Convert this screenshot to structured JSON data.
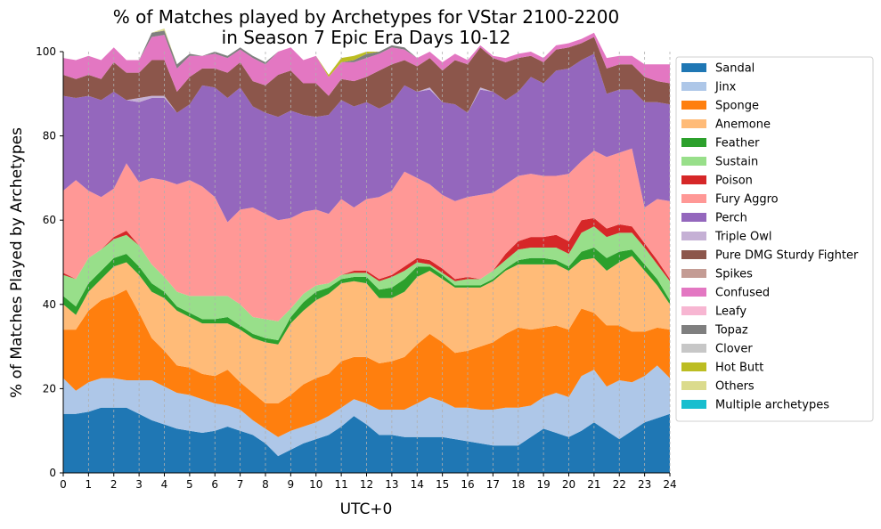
{
  "chart_data": {
    "type": "area",
    "stacked": true,
    "title_line1": "% of Matches played by Archetypes for VStar 2100-2200",
    "title_line2": "in Season 7 Epic Era Days 10-12",
    "xlabel": "UTC+0",
    "ylabel": "% of Matches Played by Archetypes",
    "xlim": [
      0,
      24
    ],
    "ylim": [
      0,
      100
    ],
    "grid": "vertical dashed at every hour",
    "legend_position": "right, outside plot",
    "x": [
      0,
      0.5,
      1,
      1.5,
      2,
      2.5,
      3,
      3.5,
      4,
      4.5,
      5,
      5.5,
      6,
      6.5,
      7,
      7.5,
      8,
      8.5,
      9,
      9.5,
      10,
      10.5,
      11,
      11.5,
      12,
      12.5,
      13,
      13.5,
      14,
      14.5,
      15,
      15.5,
      16,
      16.5,
      17,
      17.5,
      18,
      18.5,
      19,
      19.5,
      20,
      20.5,
      21,
      21.5,
      22,
      22.5,
      23,
      23.5,
      24
    ],
    "x_ticks": [
      "0",
      "1",
      "2",
      "3",
      "4",
      "5",
      "6",
      "7",
      "8",
      "9",
      "10",
      "11",
      "12",
      "13",
      "14",
      "15",
      "16",
      "17",
      "18",
      "19",
      "20",
      "21",
      "22",
      "23",
      "24"
    ],
    "y_ticks": [
      "0",
      "20",
      "40",
      "60",
      "80",
      "100"
    ],
    "series": [
      {
        "name": "Sandal",
        "color": "#1f77b4",
        "values": [
          14,
          14,
          14.5,
          15.5,
          15.5,
          15.5,
          14,
          12.5,
          11.5,
          10.5,
          10,
          9.5,
          10,
          11,
          10,
          9,
          7,
          4,
          5.5,
          7,
          8,
          9,
          11,
          13.5,
          11.5,
          9,
          9,
          8.5,
          8.5,
          8.5,
          8.5,
          8,
          7.5,
          7,
          6.5,
          6.5,
          6.5,
          8.5,
          10.5,
          9.5,
          8.5,
          10,
          12,
          10,
          8,
          10,
          12,
          13,
          14
        ]
      },
      {
        "name": "Jinx",
        "color": "#aec7e8",
        "values": [
          8.5,
          5.5,
          7,
          7,
          7,
          6.5,
          8,
          9.5,
          9,
          8.5,
          8.5,
          8,
          6.5,
          5,
          5,
          3.5,
          3.5,
          4.5,
          4.5,
          4,
          4,
          4.5,
          4.5,
          4,
          5,
          6,
          6,
          6.5,
          8,
          9.5,
          8.5,
          7.5,
          8,
          8,
          8.5,
          9,
          9,
          7.5,
          7.5,
          9.5,
          9.5,
          13,
          12.5,
          10.5,
          14,
          11.5,
          11,
          12.5,
          8.5
        ]
      },
      {
        "name": "Sponge",
        "color": "#ff7f0e",
        "values": [
          11.5,
          14.5,
          17,
          18.5,
          19.5,
          21.5,
          16,
          10,
          8.5,
          6.5,
          6.5,
          6,
          6.5,
          8.5,
          6.5,
          6.5,
          6,
          8,
          8.5,
          10,
          10.5,
          10,
          11,
          10,
          11,
          11,
          11.5,
          12.5,
          14,
          15,
          14,
          13,
          13.5,
          15,
          16,
          17.5,
          19,
          18,
          16.5,
          16,
          16,
          16,
          13.5,
          14.5,
          13,
          12,
          10.5,
          9,
          11.5
        ]
      },
      {
        "name": "Anemone",
        "color": "#ffbb78",
        "values": [
          6,
          3.5,
          4.5,
          5,
          7,
          6.5,
          9,
          11,
          12.5,
          13,
          12,
          12,
          12.5,
          11,
          12.5,
          13,
          14.5,
          14,
          17,
          17.5,
          18.5,
          19,
          18.5,
          18,
          17.5,
          15.5,
          15,
          15.5,
          16,
          15,
          15,
          15.5,
          15,
          14,
          14.5,
          15,
          15,
          15.5,
          15,
          14.5,
          14,
          11.5,
          13,
          13,
          15,
          18,
          14.5,
          10,
          6
        ]
      },
      {
        "name": "Feather",
        "color": "#2ca02c",
        "values": [
          2,
          2,
          2,
          2,
          2,
          2,
          2,
          2,
          1.5,
          1,
          1,
          1,
          1,
          1.5,
          1,
          1,
          1,
          1,
          1.5,
          2,
          2,
          1.5,
          1,
          1,
          1.5,
          2,
          2.5,
          3,
          2.5,
          1,
          1,
          0.5,
          0.5,
          0.5,
          0.5,
          0.5,
          1,
          1.5,
          1.5,
          1,
          1,
          2,
          2.5,
          3,
          2.5,
          1.5,
          1.5,
          1.5,
          1
        ]
      },
      {
        "name": "Sustain",
        "color": "#98df8a",
        "values": [
          5,
          6.5,
          6,
          5,
          4.5,
          4.5,
          5,
          4.5,
          3.5,
          3.5,
          4,
          5.5,
          5.5,
          5,
          5,
          4,
          4.5,
          4.5,
          2,
          2,
          1.5,
          1,
          1,
          1,
          1,
          2,
          2.5,
          2,
          1,
          0.5,
          0.5,
          1,
          1.5,
          1.5,
          2,
          2,
          2.5,
          2.5,
          2.5,
          3,
          3,
          4.5,
          5,
          5,
          4.5,
          4,
          4,
          3.5,
          4.5
        ]
      },
      {
        "name": "Poison",
        "color": "#d62728",
        "values": [
          0.5,
          0,
          0,
          0,
          0.5,
          1,
          0,
          0,
          0,
          0,
          0,
          0,
          0,
          0,
          0,
          0,
          0,
          0,
          0,
          0,
          0,
          0,
          0,
          0.5,
          0.5,
          0.5,
          0.5,
          1,
          1,
          1,
          1,
          0.5,
          0.5,
          0,
          0,
          1.5,
          2,
          2.5,
          2.5,
          3,
          3,
          3,
          2,
          2,
          2,
          1.5,
          1,
          1,
          0.5
        ]
      },
      {
        "name": "Fury Aggro",
        "color": "#ff9896",
        "values": [
          19.5,
          23.5,
          16,
          12.5,
          11.5,
          16,
          15,
          20.5,
          23,
          25.5,
          27.5,
          26,
          23.5,
          17.5,
          22.5,
          26,
          25,
          24,
          21.5,
          19.5,
          18,
          16.5,
          18,
          15,
          17,
          19.5,
          20,
          22.5,
          19,
          18,
          17.5,
          18.5,
          19,
          20,
          18.5,
          16.5,
          15.5,
          15,
          14.5,
          14,
          16,
          14,
          16,
          17,
          17,
          18.5,
          8.5,
          14.5,
          18.5
        ]
      },
      {
        "name": "Perch",
        "color": "#9467bd",
        "values": [
          22.5,
          19.5,
          22.5,
          23,
          23,
          15,
          19,
          19,
          19.5,
          17,
          18,
          24,
          26,
          29.5,
          29,
          24,
          24,
          24.5,
          25.5,
          23,
          22,
          23.5,
          23.5,
          24,
          23,
          21,
          21,
          20.5,
          20.5,
          22.5,
          22,
          23,
          20,
          25,
          24,
          20,
          20,
          23,
          22,
          25,
          25,
          24,
          23,
          15,
          15,
          14,
          25,
          23,
          23
        ]
      },
      {
        "name": "Triple Owl",
        "color": "#c5b0d5",
        "values": [
          0,
          0,
          0,
          0,
          0,
          0,
          1,
          0.5,
          0.5,
          0,
          0,
          0,
          0,
          0,
          0,
          0,
          0,
          0,
          0,
          0,
          0,
          0,
          0,
          0,
          0,
          0,
          0,
          0,
          0,
          0.5,
          0,
          0,
          0,
          0.5,
          0,
          0,
          0,
          0,
          0,
          0,
          0,
          0,
          0,
          0,
          0,
          0,
          0,
          0,
          0
        ]
      },
      {
        "name": "Pure DMG Sturdy Fighter",
        "color": "#8c564b",
        "values": [
          5,
          4.5,
          5,
          5,
          7,
          6.5,
          6,
          8.5,
          8.5,
          5,
          6.5,
          4,
          4.5,
          6,
          6,
          6,
          6.5,
          10,
          9.5,
          7.5,
          8,
          4.5,
          5,
          6,
          6,
          9,
          9,
          6,
          6,
          7,
          7.5,
          10.5,
          11.5,
          9.5,
          8,
          9,
          8,
          5,
          5,
          5,
          5,
          4,
          4,
          6,
          6,
          6,
          6,
          5,
          5
        ]
      },
      {
        "name": "Spikes",
        "color": "#c49c94",
        "values": [
          0,
          0,
          0,
          0,
          0,
          0,
          0,
          0,
          0,
          0,
          0,
          0,
          0,
          0,
          0,
          0,
          0,
          0,
          0,
          0,
          0,
          0,
          0,
          0,
          0,
          0,
          0,
          0,
          0,
          0,
          0,
          0,
          0,
          0,
          0,
          0,
          0,
          0,
          0,
          0,
          0,
          0,
          0,
          0,
          0,
          0,
          0,
          0,
          0
        ]
      },
      {
        "name": "Confused",
        "color": "#e377c2",
        "values": [
          4,
          4.5,
          4.5,
          4.5,
          3.5,
          3,
          3,
          5.5,
          6,
          5.5,
          5,
          3,
          3.5,
          3.5,
          3,
          5.5,
          5,
          5.5,
          5.5,
          5.5,
          6.5,
          4.5,
          4,
          4.5,
          4.5,
          4,
          4,
          2.5,
          2,
          1.5,
          2,
          1.5,
          1,
          0.5,
          0.5,
          1,
          1,
          1,
          1,
          1,
          1,
          1,
          1,
          2.5,
          2,
          2,
          3,
          4,
          4.5
        ]
      },
      {
        "name": "Leafy",
        "color": "#f7b6d2",
        "values": [
          0,
          0,
          0,
          0,
          0,
          0,
          0,
          0,
          0,
          0,
          0,
          0,
          0,
          0,
          0,
          0,
          0,
          0,
          0,
          0,
          0,
          0,
          0,
          0,
          0,
          0,
          0,
          0,
          0,
          0,
          0,
          0,
          0,
          0,
          0,
          0,
          0,
          0,
          0,
          0,
          0,
          0,
          0,
          0,
          0,
          0,
          0,
          0,
          0
        ]
      },
      {
        "name": "Topaz",
        "color": "#7f7f7f",
        "values": [
          0,
          0,
          0,
          0,
          0,
          0,
          0,
          1,
          1,
          1,
          0.5,
          0,
          0.5,
          0.5,
          0.5,
          0.5,
          0.5,
          0,
          0,
          0,
          0,
          0,
          0,
          0.5,
          1,
          0.5,
          0.5,
          0.5,
          0,
          0,
          0,
          0,
          0,
          0,
          0,
          0,
          0,
          0,
          0,
          0,
          0,
          0,
          0,
          0,
          0,
          0,
          0,
          0,
          0
        ]
      },
      {
        "name": "Clover",
        "color": "#c7c7c7",
        "values": [
          0,
          0,
          0,
          0,
          0,
          0,
          0,
          0,
          0,
          0,
          0,
          0,
          0,
          0,
          0,
          0,
          0,
          0,
          0,
          0,
          0,
          0,
          0,
          0,
          0,
          0,
          0,
          0,
          0,
          0,
          0,
          0,
          0,
          0,
          0,
          0,
          0,
          0,
          0,
          0,
          0,
          0,
          0,
          0,
          0,
          0,
          0,
          0,
          0
        ]
      },
      {
        "name": "Hot Butt",
        "color": "#bcbd22",
        "values": [
          0,
          0,
          0,
          0,
          0,
          0,
          0,
          0,
          0,
          0,
          0,
          0,
          0,
          0,
          0,
          0,
          0,
          0,
          0,
          0,
          0,
          0.5,
          1,
          1,
          0.5,
          0,
          0,
          0,
          0,
          0,
          0,
          0,
          0,
          0,
          0,
          0,
          0,
          0,
          0,
          0,
          0,
          0,
          0,
          0,
          0,
          0,
          0,
          0,
          0
        ]
      },
      {
        "name": "Others",
        "color": "#dbdb8d",
        "values": [
          0,
          0,
          0,
          0,
          0,
          0,
          0,
          0,
          0.5,
          0,
          0,
          0,
          0,
          0,
          0,
          0,
          0,
          0,
          0,
          0,
          0,
          0,
          0,
          0,
          0,
          0,
          0,
          0,
          0,
          0,
          0,
          0,
          0,
          0,
          0,
          0,
          0,
          0,
          0,
          0,
          0,
          0,
          0,
          0,
          0,
          0,
          0,
          0,
          0
        ]
      },
      {
        "name": "Multiple archetypes",
        "color": "#17becf",
        "values": [
          0,
          0,
          0,
          0,
          0,
          0,
          0,
          0,
          0,
          0,
          0,
          0,
          0,
          0,
          0,
          0,
          0,
          0,
          0,
          0,
          0,
          0,
          0,
          0,
          0,
          0,
          0,
          0,
          0,
          0,
          0,
          0,
          0,
          0,
          0,
          0,
          0,
          0,
          0,
          0,
          0,
          0,
          0,
          0,
          0,
          0,
          0,
          0,
          0
        ]
      }
    ]
  }
}
